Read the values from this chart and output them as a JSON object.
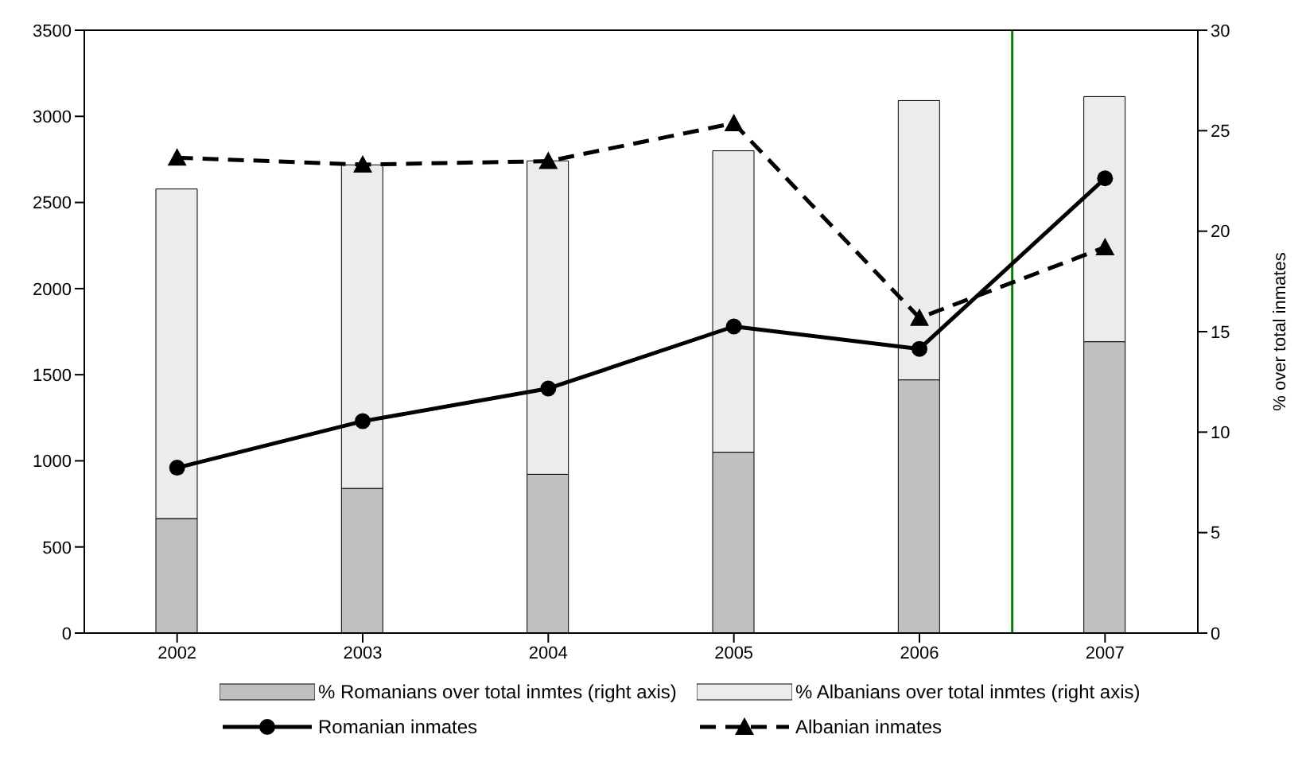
{
  "chart_data": {
    "type": "bar",
    "x": [
      2002,
      2003,
      2004,
      2005,
      2006,
      2007
    ],
    "xlim": [
      2001.5,
      2007.5
    ],
    "xticks": [
      2002,
      2003,
      2004,
      2005,
      2006,
      2007
    ],
    "y2label": "% over total inmates",
    "ylim": [
      0,
      3500
    ],
    "yticks": [
      0,
      500,
      1000,
      1500,
      2000,
      2500,
      3000,
      3500
    ],
    "y2lim": [
      0,
      30
    ],
    "y2ticks": [
      0,
      5,
      10,
      15,
      20,
      25,
      30
    ],
    "stacked": true,
    "grid": false,
    "legend": "bottom",
    "series": [
      {
        "name": "% Romanians over total inmtes (right axis)",
        "axis": "y2",
        "color": "#c0c0c0",
        "values": [
          5.7,
          7.2,
          7.9,
          9.0,
          12.6,
          14.5
        ]
      },
      {
        "name": "% Albanians over total inmtes (right axis)",
        "axis": "y2",
        "color": "#ececec",
        "values": [
          16.4,
          16.1,
          15.6,
          15.0,
          13.9,
          12.2
        ]
      },
      {
        "name": "Romanian inmates",
        "type": "line",
        "color": "#000000",
        "marker": "circle",
        "line_style": "solid",
        "values": [
          960,
          1230,
          1420,
          1780,
          1650,
          2640
        ]
      },
      {
        "name": "Albanian inmates",
        "type": "line",
        "color": "#000000",
        "marker": "triangle",
        "line_style": "dashed",
        "values": [
          2760,
          2720,
          2740,
          2960,
          1830,
          2240
        ]
      }
    ],
    "ref_lines": [
      {
        "axis": "x",
        "value": 2006.5,
        "color": "#008000"
      }
    ]
  }
}
